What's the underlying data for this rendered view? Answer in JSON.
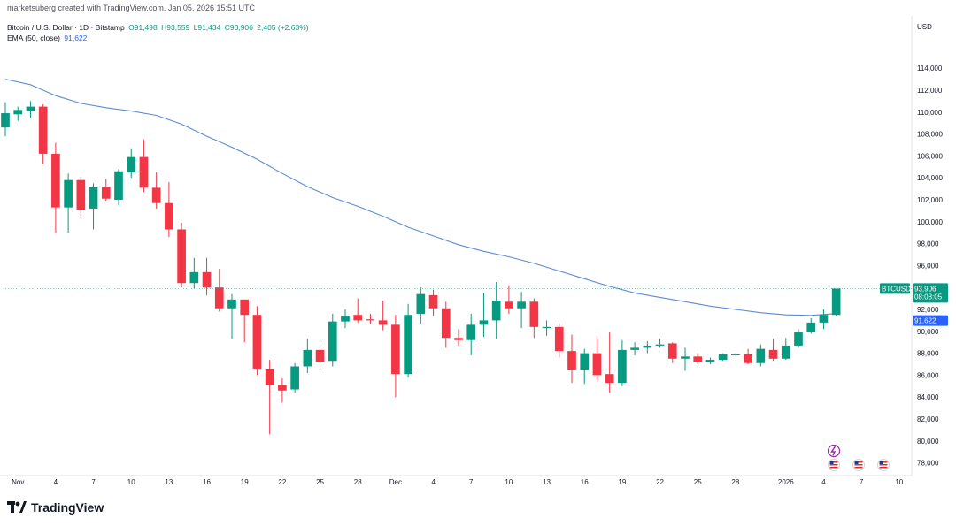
{
  "header": {
    "credit": "marketsuberg created with TradingView.com, Jan 05, 2026 15:51 UTC"
  },
  "legend": {
    "symbol": "Bitcoin / U.S. Dollar · 1D · Bitstamp",
    "open": "O91,498",
    "high": "H93,559",
    "low": "L91,434",
    "close": "C93,906",
    "change": "2,405 (+2.63%)",
    "ema_label": "EMA (50, close)",
    "ema_value": "91,622"
  },
  "brand": {
    "name": "TradingView"
  },
  "colors": {
    "up": "#089981",
    "down": "#f23645",
    "ema": "#5b8bd6",
    "price_tag": "#089981",
    "ema_tag": "#2962ff"
  },
  "chart_data": {
    "type": "candlestick",
    "title": "Bitcoin / U.S. Dollar · 1D · Bitstamp",
    "ylabel": "USD",
    "currency_label": "USD",
    "ylim": [
      77000,
      117000
    ],
    "y_ticks": [
      78000,
      80000,
      82000,
      84000,
      86000,
      88000,
      90000,
      92000,
      94000,
      96000,
      98000,
      100000,
      102000,
      104000,
      106000,
      108000,
      110000,
      112000,
      114000
    ],
    "y_tick_labels": [
      "78,000",
      "80,000",
      "82,000",
      "84,000",
      "86,000",
      "88,000",
      "90,000",
      "92,000",
      "94,000",
      "96,000",
      "98,000",
      "100,000",
      "102,000",
      "104,000",
      "106,000",
      "108,000",
      "110,000",
      "112,000",
      "114,000"
    ],
    "x_domain": [
      -1,
      71
    ],
    "x_ticks": [
      {
        "label": "Nov",
        "day": 0
      },
      {
        "label": "4",
        "day": 3
      },
      {
        "label": "7",
        "day": 6
      },
      {
        "label": "10",
        "day": 9
      },
      {
        "label": "13",
        "day": 12
      },
      {
        "label": "16",
        "day": 15
      },
      {
        "label": "19",
        "day": 18
      },
      {
        "label": "22",
        "day": 21
      },
      {
        "label": "25",
        "day": 24
      },
      {
        "label": "28",
        "day": 27
      },
      {
        "label": "Dec",
        "day": 30
      },
      {
        "label": "4",
        "day": 33
      },
      {
        "label": "7",
        "day": 36
      },
      {
        "label": "10",
        "day": 39
      },
      {
        "label": "13",
        "day": 42
      },
      {
        "label": "16",
        "day": 45
      },
      {
        "label": "19",
        "day": 48
      },
      {
        "label": "22",
        "day": 51
      },
      {
        "label": "25",
        "day": 54
      },
      {
        "label": "28",
        "day": 57
      },
      {
        "label": "2026",
        "day": 61
      },
      {
        "label": "4",
        "day": 64
      },
      {
        "label": "7",
        "day": 67
      },
      {
        "label": "10",
        "day": 70
      }
    ],
    "candles": [
      {
        "day": -1,
        "o": 108600,
        "h": 110900,
        "l": 107800,
        "c": 109900
      },
      {
        "day": 0,
        "o": 109800,
        "h": 110500,
        "l": 109200,
        "c": 110200
      },
      {
        "day": 1,
        "o": 110100,
        "h": 111000,
        "l": 109500,
        "c": 110500
      },
      {
        "day": 2,
        "o": 110500,
        "h": 110700,
        "l": 105300,
        "c": 106200
      },
      {
        "day": 3,
        "o": 106200,
        "h": 107200,
        "l": 99000,
        "c": 101300
      },
      {
        "day": 4,
        "o": 101300,
        "h": 104400,
        "l": 99000,
        "c": 103800
      },
      {
        "day": 5,
        "o": 103800,
        "h": 104100,
        "l": 100300,
        "c": 101100
      },
      {
        "day": 6,
        "o": 101200,
        "h": 103500,
        "l": 99300,
        "c": 103200
      },
      {
        "day": 7,
        "o": 103200,
        "h": 103900,
        "l": 101900,
        "c": 102100
      },
      {
        "day": 8,
        "o": 102000,
        "h": 104800,
        "l": 101500,
        "c": 104600
      },
      {
        "day": 9,
        "o": 104500,
        "h": 106700,
        "l": 104000,
        "c": 105900
      },
      {
        "day": 10,
        "o": 105900,
        "h": 107500,
        "l": 102700,
        "c": 103100
      },
      {
        "day": 11,
        "o": 103100,
        "h": 104500,
        "l": 101200,
        "c": 101700
      },
      {
        "day": 12,
        "o": 101700,
        "h": 103600,
        "l": 98600,
        "c": 99300
      },
      {
        "day": 13,
        "o": 99300,
        "h": 99900,
        "l": 94000,
        "c": 94400
      },
      {
        "day": 14,
        "o": 94400,
        "h": 96700,
        "l": 93900,
        "c": 95400
      },
      {
        "day": 15,
        "o": 95400,
        "h": 96700,
        "l": 93300,
        "c": 94000
      },
      {
        "day": 16,
        "o": 94000,
        "h": 95700,
        "l": 91800,
        "c": 92100
      },
      {
        "day": 17,
        "o": 92100,
        "h": 93400,
        "l": 89300,
        "c": 92900
      },
      {
        "day": 18,
        "o": 92900,
        "h": 92900,
        "l": 89000,
        "c": 91500
      },
      {
        "day": 19,
        "o": 91500,
        "h": 92300,
        "l": 86000,
        "c": 86600
      },
      {
        "day": 20,
        "o": 86600,
        "h": 87400,
        "l": 80600,
        "c": 85100
      },
      {
        "day": 21,
        "o": 85100,
        "h": 85700,
        "l": 83500,
        "c": 84600
      },
      {
        "day": 22,
        "o": 84700,
        "h": 87100,
        "l": 84400,
        "c": 86800
      },
      {
        "day": 23,
        "o": 86800,
        "h": 89300,
        "l": 86200,
        "c": 88300
      },
      {
        "day": 24,
        "o": 88300,
        "h": 89000,
        "l": 86500,
        "c": 87200
      },
      {
        "day": 25,
        "o": 87300,
        "h": 91600,
        "l": 86800,
        "c": 90900
      },
      {
        "day": 26,
        "o": 90900,
        "h": 92000,
        "l": 90300,
        "c": 91400
      },
      {
        "day": 27,
        "o": 91500,
        "h": 93000,
        "l": 90800,
        "c": 91000
      },
      {
        "day": 28,
        "o": 91100,
        "h": 91600,
        "l": 90700,
        "c": 91000
      },
      {
        "day": 29,
        "o": 91000,
        "h": 92800,
        "l": 90100,
        "c": 90600
      },
      {
        "day": 30,
        "o": 90600,
        "h": 91500,
        "l": 84000,
        "c": 86100
      },
      {
        "day": 31,
        "o": 86100,
        "h": 92500,
        "l": 85800,
        "c": 91500
      },
      {
        "day": 32,
        "o": 91600,
        "h": 94000,
        "l": 90700,
        "c": 93400
      },
      {
        "day": 33,
        "o": 93300,
        "h": 93800,
        "l": 91400,
        "c": 92100
      },
      {
        "day": 34,
        "o": 92100,
        "h": 92700,
        "l": 88500,
        "c": 89400
      },
      {
        "day": 35,
        "o": 89400,
        "h": 90200,
        "l": 88700,
        "c": 89200
      },
      {
        "day": 36,
        "o": 89200,
        "h": 91600,
        "l": 87800,
        "c": 90600
      },
      {
        "day": 37,
        "o": 90600,
        "h": 93500,
        "l": 89500,
        "c": 91000
      },
      {
        "day": 38,
        "o": 91000,
        "h": 94500,
        "l": 89300,
        "c": 92800
      },
      {
        "day": 39,
        "o": 92700,
        "h": 94200,
        "l": 91600,
        "c": 92100
      },
      {
        "day": 40,
        "o": 92100,
        "h": 93600,
        "l": 90300,
        "c": 92700
      },
      {
        "day": 41,
        "o": 92700,
        "h": 93000,
        "l": 89400,
        "c": 90400
      },
      {
        "day": 42,
        "o": 90300,
        "h": 91000,
        "l": 89600,
        "c": 90400
      },
      {
        "day": 43,
        "o": 90400,
        "h": 90700,
        "l": 87600,
        "c": 88200
      },
      {
        "day": 44,
        "o": 88200,
        "h": 89700,
        "l": 85300,
        "c": 86500
      },
      {
        "day": 45,
        "o": 86500,
        "h": 88400,
        "l": 85200,
        "c": 88000
      },
      {
        "day": 46,
        "o": 88000,
        "h": 89400,
        "l": 85500,
        "c": 86000
      },
      {
        "day": 47,
        "o": 86100,
        "h": 89900,
        "l": 84400,
        "c": 85300
      },
      {
        "day": 48,
        "o": 85300,
        "h": 89200,
        "l": 85000,
        "c": 88300
      },
      {
        "day": 49,
        "o": 88300,
        "h": 89000,
        "l": 87800,
        "c": 88500
      },
      {
        "day": 50,
        "o": 88500,
        "h": 89100,
        "l": 88000,
        "c": 88700
      },
      {
        "day": 51,
        "o": 88700,
        "h": 89300,
        "l": 88500,
        "c": 88800
      },
      {
        "day": 52,
        "o": 88900,
        "h": 89000,
        "l": 87100,
        "c": 87500
      },
      {
        "day": 53,
        "o": 87500,
        "h": 88500,
        "l": 86400,
        "c": 87700
      },
      {
        "day": 54,
        "o": 87700,
        "h": 88000,
        "l": 87000,
        "c": 87200
      },
      {
        "day": 55,
        "o": 87200,
        "h": 87600,
        "l": 87000,
        "c": 87400
      },
      {
        "day": 56,
        "o": 87400,
        "h": 88000,
        "l": 87300,
        "c": 87900
      },
      {
        "day": 57,
        "o": 87900,
        "h": 88000,
        "l": 87800,
        "c": 87900
      },
      {
        "day": 58,
        "o": 87900,
        "h": 88400,
        "l": 87000,
        "c": 87100
      },
      {
        "day": 59,
        "o": 87100,
        "h": 88800,
        "l": 86800,
        "c": 88400
      },
      {
        "day": 60,
        "o": 88300,
        "h": 89300,
        "l": 87300,
        "c": 87500
      },
      {
        "day": 61,
        "o": 87500,
        "h": 89400,
        "l": 87400,
        "c": 88700
      },
      {
        "day": 62,
        "o": 88700,
        "h": 90200,
        "l": 88500,
        "c": 89900
      },
      {
        "day": 63,
        "o": 89900,
        "h": 91200,
        "l": 89800,
        "c": 90800
      },
      {
        "day": 64,
        "o": 90800,
        "h": 92000,
        "l": 90200,
        "c": 91500
      },
      {
        "day": 65,
        "o": 91498,
        "h": 93559,
        "l": 91434,
        "c": 93906
      }
    ],
    "ema_series": [
      {
        "day": -1,
        "v": 113000
      },
      {
        "day": 1,
        "v": 112500
      },
      {
        "day": 3,
        "v": 111500
      },
      {
        "day": 5,
        "v": 110800
      },
      {
        "day": 7,
        "v": 110400
      },
      {
        "day": 9,
        "v": 110100
      },
      {
        "day": 11,
        "v": 109700
      },
      {
        "day": 13,
        "v": 108900
      },
      {
        "day": 15,
        "v": 107800
      },
      {
        "day": 17,
        "v": 106800
      },
      {
        "day": 19,
        "v": 105700
      },
      {
        "day": 21,
        "v": 104400
      },
      {
        "day": 23,
        "v": 103200
      },
      {
        "day": 25,
        "v": 102200
      },
      {
        "day": 27,
        "v": 101400
      },
      {
        "day": 29,
        "v": 100500
      },
      {
        "day": 31,
        "v": 99500
      },
      {
        "day": 33,
        "v": 98700
      },
      {
        "day": 35,
        "v": 97900
      },
      {
        "day": 37,
        "v": 97300
      },
      {
        "day": 39,
        "v": 96800
      },
      {
        "day": 41,
        "v": 96200
      },
      {
        "day": 43,
        "v": 95500
      },
      {
        "day": 45,
        "v": 94800
      },
      {
        "day": 47,
        "v": 94100
      },
      {
        "day": 49,
        "v": 93500
      },
      {
        "day": 51,
        "v": 93100
      },
      {
        "day": 53,
        "v": 92700
      },
      {
        "day": 55,
        "v": 92300
      },
      {
        "day": 57,
        "v": 92000
      },
      {
        "day": 59,
        "v": 91700
      },
      {
        "day": 61,
        "v": 91500
      },
      {
        "day": 63,
        "v": 91450
      },
      {
        "day": 65,
        "v": 91622
      }
    ],
    "price_tag": {
      "symbol": "BTCUSD",
      "value": 93906,
      "value_text": "93,906",
      "countdown": "08:08:05"
    },
    "ema_tag": {
      "value": 91622,
      "value_text": "91,622"
    }
  }
}
